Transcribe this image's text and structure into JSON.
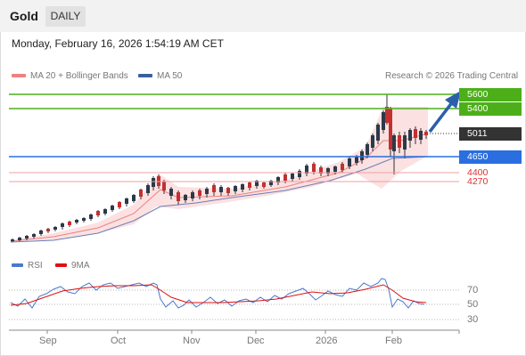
{
  "header": {
    "title": "Gold",
    "timeframe_tab": "DAILY"
  },
  "timestamp": "Monday, February 16, 2026 1:54:19 AM CET",
  "legend": {
    "ma20_label": "MA 20 + Bollinger Bands",
    "ma20_color": "#f08080",
    "ma50_label": "MA 50",
    "ma50_color": "#3a5fa0"
  },
  "source": "Research © 2026 Trading Central",
  "levels": {
    "r2": {
      "label": "5600",
      "color": "#4caf1a"
    },
    "r1": {
      "label": "5400",
      "color": "#4caf1a"
    },
    "last": {
      "label": "5011",
      "color": "#333333"
    },
    "pivot": {
      "label": "4650",
      "color": "#2a6ee0"
    },
    "s1": {
      "label": "4400",
      "color": "#e03030"
    },
    "s2": {
      "label": "4270",
      "color": "#e03030"
    }
  },
  "indicator_legend": {
    "rsi_label": "RSI",
    "rsi_color": "#4a78d0",
    "ma_label": "9MA",
    "ma_color": "#e01010"
  },
  "rsi_levels": [
    "70",
    "50",
    "30"
  ],
  "x_axis": [
    "Sep",
    "Oct",
    "Nov",
    "Dec",
    "2026",
    "Feb"
  ]
}
